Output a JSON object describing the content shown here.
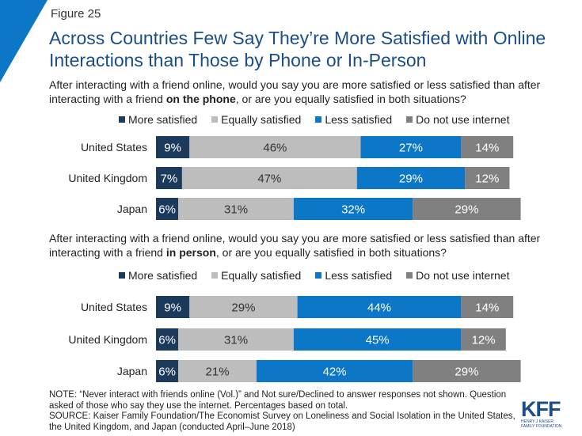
{
  "figure_label": "Figure 25",
  "title": "Across Countries Few Say They’re More Satisfied with Online Interactions than Those by Phone or In-Person",
  "colors": {
    "more_satisfied": "#1b3a5c",
    "equally_satisfied": "#bdbdbd",
    "less_satisfied": "#0b77c6",
    "do_not_use_internet": "#808080",
    "title": "#1a4d8a",
    "accent_corner": "#0b77c6"
  },
  "chart_data": [
    {
      "type": "bar",
      "orientation": "horizontal-stacked",
      "question_parts": [
        "After interacting with a friend online, would you say you are more satisfied or less satisfied than after interacting with a friend ",
        "on the phone",
        ", or are you equally satisfied in both situations?"
      ],
      "legend_position": "top",
      "categories": [
        "United States",
        "United Kingdom",
        "Japan"
      ],
      "series": [
        {
          "name": "More satisfied",
          "values": [
            9,
            7,
            6
          ]
        },
        {
          "name": "Equally satisfied",
          "values": [
            46,
            47,
            31
          ]
        },
        {
          "name": "Less satisfied",
          "values": [
            27,
            29,
            32
          ]
        },
        {
          "name": "Do not use internet",
          "values": [
            14,
            12,
            29
          ]
        }
      ],
      "value_suffix": "%"
    },
    {
      "type": "bar",
      "orientation": "horizontal-stacked",
      "question_parts": [
        "After interacting with a friend online, would you say you are more satisfied or less satisfied than after interacting with a friend ",
        "in person",
        ", or are you equally satisfied in both situations?"
      ],
      "legend_position": "top",
      "categories": [
        "United States",
        "United Kingdom",
        "Japan"
      ],
      "series": [
        {
          "name": "More satisfied",
          "values": [
            9,
            6,
            6
          ]
        },
        {
          "name": "Equally satisfied",
          "values": [
            29,
            31,
            21
          ]
        },
        {
          "name": "Less satisfied",
          "values": [
            44,
            45,
            42
          ]
        },
        {
          "name": "Do not use internet",
          "values": [
            14,
            12,
            29
          ]
        }
      ],
      "value_suffix": "%"
    }
  ],
  "note": "NOTE: “Never interact with friends online (Vol.)” and Not sure/Declined to answer responses not shown. Question asked of those who say they use the internet. Percentages based on total.",
  "source": "SOURCE: Kaiser Family Foundation/The Economist Survey on Loneliness and Social Isolation in the United States, the United Kingdom, and Japan (conducted April–June 2018)",
  "logo": {
    "main": "KFF",
    "sub1": "HENRY J KAISER",
    "sub2": "FAMILY FOUNDATION"
  }
}
